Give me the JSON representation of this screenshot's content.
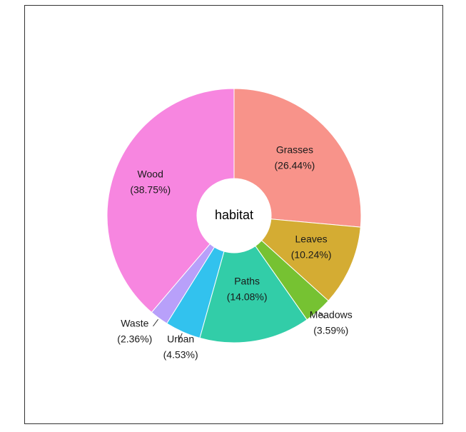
{
  "chart_data": {
    "type": "pie",
    "variant": "donut",
    "title": "habitat",
    "legend": "none",
    "slices": [
      {
        "label": "Grasses",
        "value": 26.44,
        "pct_label": "(26.44%)",
        "color": "#F8938A"
      },
      {
        "label": "Leaves",
        "value": 10.24,
        "pct_label": "(10.24%)",
        "color": "#D4AC33"
      },
      {
        "label": "Meadows",
        "value": 3.59,
        "pct_label": "(3.59%)",
        "color": "#76C232"
      },
      {
        "label": "Paths",
        "value": 14.08,
        "pct_label": "(14.08%)",
        "color": "#32CDA8"
      },
      {
        "label": "Urban",
        "value": 4.53,
        "pct_label": "(4.53%)",
        "color": "#32C2EE"
      },
      {
        "label": "Waste",
        "value": 2.36,
        "pct_label": "(2.36%)",
        "color": "#B8A0FA"
      },
      {
        "label": "Wood",
        "value": 38.75,
        "pct_label": "(38.75%)",
        "color": "#F786E0"
      }
    ]
  }
}
